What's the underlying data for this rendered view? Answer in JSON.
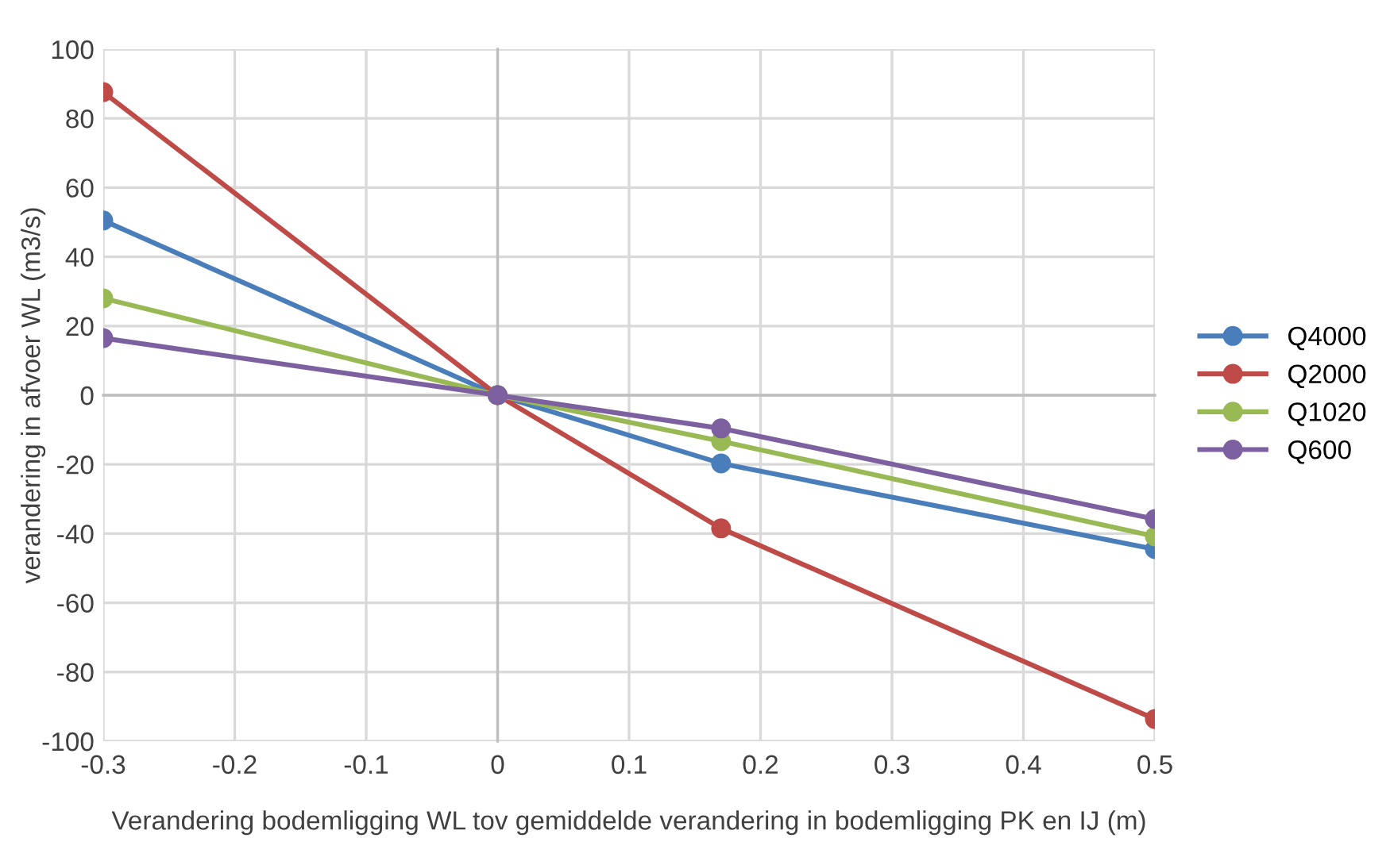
{
  "chart_data": {
    "type": "line",
    "xlabel": "Verandering bodemligging WL tov gemiddelde verandering in bodemligging PK en IJ (m)",
    "ylabel": "verandering in afvoer WL (m3/s)",
    "x": [
      -0.3,
      0,
      0.17,
      0.5
    ],
    "series": [
      {
        "name": "Q4000",
        "color": "#4a7ebb",
        "values": [
          50.5,
          0,
          -19.7,
          -44.5
        ]
      },
      {
        "name": "Q2000",
        "color": "#be4b48",
        "values": [
          87.6,
          0,
          -38.5,
          -93.6
        ]
      },
      {
        "name": "Q1020",
        "color": "#98b954",
        "values": [
          28,
          0,
          -13.3,
          -40.8
        ]
      },
      {
        "name": "Q600",
        "color": "#7d60a0",
        "values": [
          16.5,
          0,
          -9.6,
          -35.8
        ]
      }
    ],
    "xlim": [
      -0.3,
      0.5
    ],
    "xticks": [
      -0.3,
      -0.2,
      -0.1,
      0,
      0.1,
      0.2,
      0.3,
      0.4,
      0.5
    ],
    "ylim": [
      -100,
      100
    ],
    "yticks": [
      -100,
      -80,
      -60,
      -40,
      -20,
      0,
      20,
      40,
      60,
      80,
      100
    ],
    "grid": true,
    "legend": "right",
    "marker": "circle",
    "line_style": "solid"
  }
}
